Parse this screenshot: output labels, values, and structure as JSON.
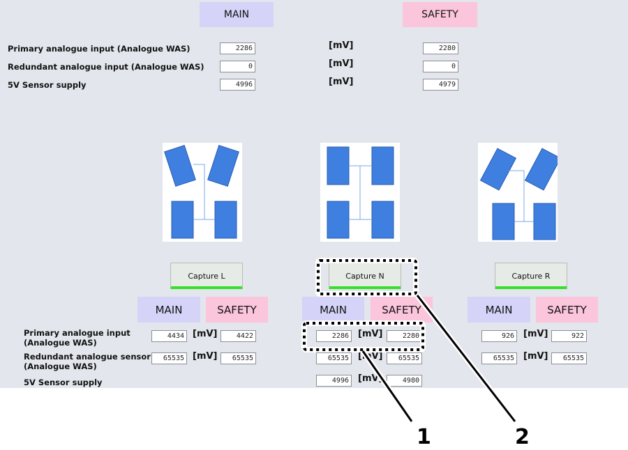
{
  "top": {
    "main_label": "MAIN",
    "safety_label": "SAFETY",
    "unit": "[mV]",
    "rows": [
      {
        "label": "Primary analogue input (Analogue WAS)",
        "main": "2286",
        "safety": "2280"
      },
      {
        "label": "Redundant analogue input (Analogue WAS)",
        "main": "0",
        "safety": "0"
      },
      {
        "label": "5V Sensor supply",
        "main": "4996",
        "safety": "4979"
      }
    ]
  },
  "row_labels": [
    "Primary analogue input\n(Analogue WAS)",
    "Redundant analogue sensor\n(Analogue WAS)",
    "5V Sensor supply"
  ],
  "panels": [
    {
      "capture": "Capture L",
      "main_label": "MAIN",
      "safety_label": "SAFETY",
      "unit": "[mV]",
      "rows": [
        {
          "main": "4434",
          "safety": "4422"
        },
        {
          "main": "65535",
          "safety": "65535"
        }
      ]
    },
    {
      "capture": "Capture N",
      "main_label": "MAIN",
      "safety_label": "SAFETY",
      "unit": "[mV]",
      "rows": [
        {
          "main": "2286",
          "safety": "2280"
        },
        {
          "main": "65535",
          "safety": "65535"
        },
        {
          "main": "4996",
          "safety": "4980"
        }
      ]
    },
    {
      "capture": "Capture R",
      "main_label": "MAIN",
      "safety_label": "SAFETY",
      "unit": "[mV]",
      "rows": [
        {
          "main": "926",
          "safety": "922"
        },
        {
          "main": "65535",
          "safety": "65535"
        }
      ]
    }
  ],
  "callouts": [
    "1",
    "2"
  ],
  "colors": {
    "main": "#d5d3f8",
    "safety": "#fbc5dc",
    "wheel": "#3f7fe0",
    "capture_bar": "#35e02a"
  }
}
